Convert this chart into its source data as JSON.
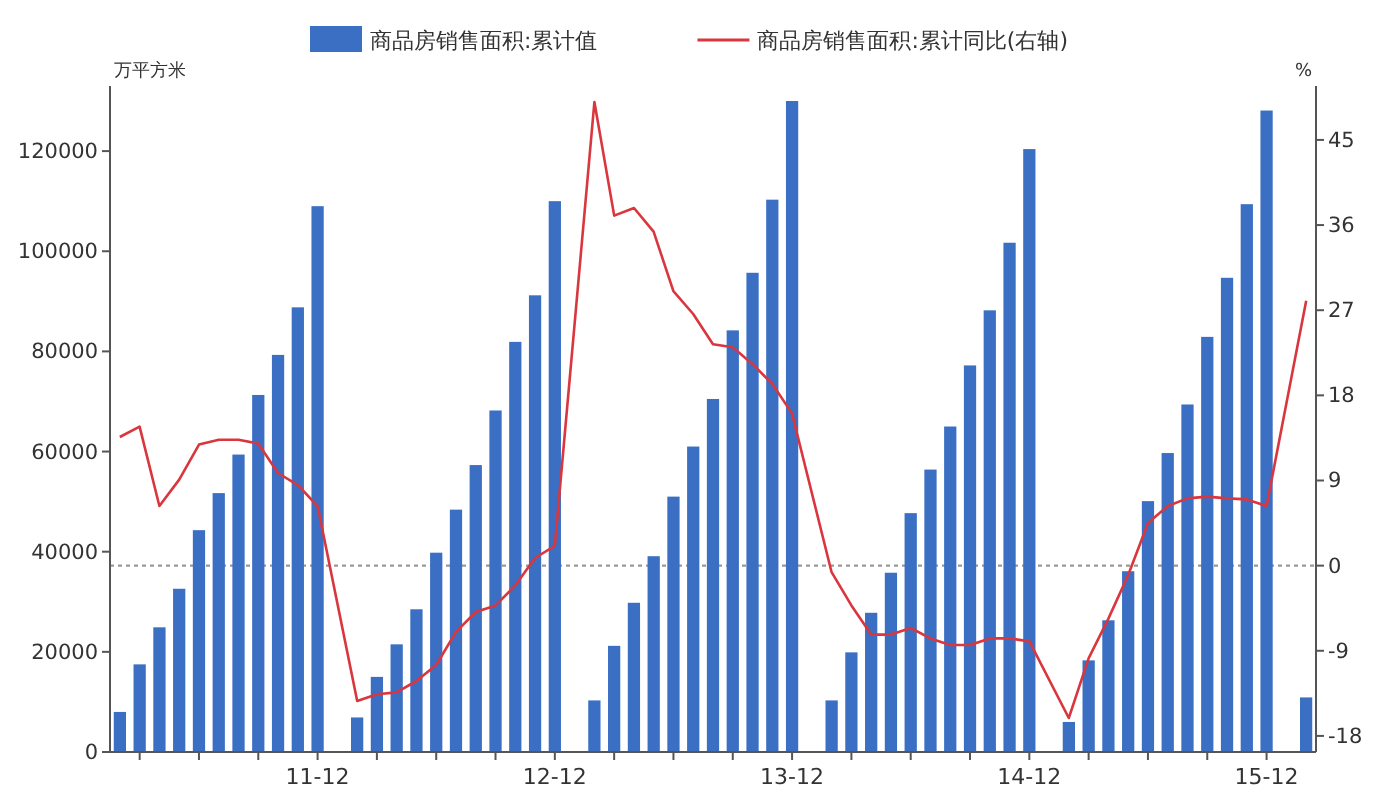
{
  "chart_data": {
    "type": "bar",
    "ylabel": "万平方米",
    "y2label": "%",
    "categories": [
      null,
      null,
      null,
      null,
      null,
      null,
      null,
      null,
      null,
      null,
      "11-12",
      null,
      null,
      null,
      null,
      null,
      null,
      null,
      null,
      null,
      null,
      null,
      "12-12",
      null,
      null,
      null,
      null,
      null,
      null,
      null,
      null,
      null,
      null,
      null,
      "13-12",
      null,
      null,
      null,
      null,
      null,
      null,
      null,
      null,
      null,
      null,
      null,
      "14-12",
      null,
      null,
      null,
      null,
      null,
      null,
      null,
      null,
      null,
      null,
      null,
      "15-12",
      null,
      null
    ],
    "series": [
      {
        "name": "商品房销售面积:累计值",
        "color": "#3a6fc4",
        "values": [
          8000,
          17500,
          24900,
          32600,
          44300,
          51700,
          59400,
          71300,
          79300,
          88800,
          109000,
          null,
          6900,
          15000,
          21500,
          28500,
          39800,
          48400,
          57300,
          68200,
          81900,
          91200,
          110000,
          null,
          10300,
          21200,
          29800,
          39100,
          51000,
          61000,
          70500,
          84200,
          95700,
          110300,
          130000,
          null,
          10300,
          19900,
          27800,
          35800,
          47700,
          56400,
          65000,
          77200,
          88200,
          101700,
          120400,
          null,
          6000,
          18300,
          26300,
          36100,
          50100,
          59700,
          69400,
          82900,
          94700,
          109400,
          128100,
          null,
          10900
        ]
      },
      {
        "name": "商品房销售面积:累计同比(右轴)",
        "type": "line",
        "axis": "y2",
        "color": "#d9363e",
        "values": [
          13.6,
          14.7,
          6.3,
          9.1,
          12.8,
          13.3,
          13.3,
          12.9,
          9.8,
          8.5,
          6.3,
          null,
          -14.3,
          -13.6,
          -13.4,
          -12.2,
          -10.5,
          -7,
          -4.9,
          -4.2,
          -2.1,
          0.8,
          2.1,
          null,
          49,
          37,
          37.8,
          35.3,
          29,
          26.6,
          23.4,
          23.1,
          21.3,
          19.2,
          16.1,
          null,
          -0.7,
          -4.2,
          -7.3,
          -7.3,
          -6.6,
          -7.7,
          -8.4,
          -8.4,
          -7.7,
          -7.7,
          -8,
          null,
          -16.1,
          -9.8,
          -5.6,
          -1,
          4.5,
          6.3,
          7.1,
          7.3,
          7.1,
          7,
          6.3,
          null,
          28
        ]
      }
    ],
    "ylim": [
      0,
      133000
    ],
    "yticks": [
      0,
      20000,
      40000,
      60000,
      80000,
      100000,
      120000
    ],
    "y2lim": [
      -19.7,
      50.7
    ],
    "y2ticks": [
      -18,
      -9,
      0,
      9,
      18,
      27,
      36,
      45
    ],
    "ref_lines": [
      {
        "axis": "y2",
        "value": 0,
        "color": "#999999",
        "line_style": "dotted"
      }
    ],
    "legend": "top",
    "grid": false
  }
}
